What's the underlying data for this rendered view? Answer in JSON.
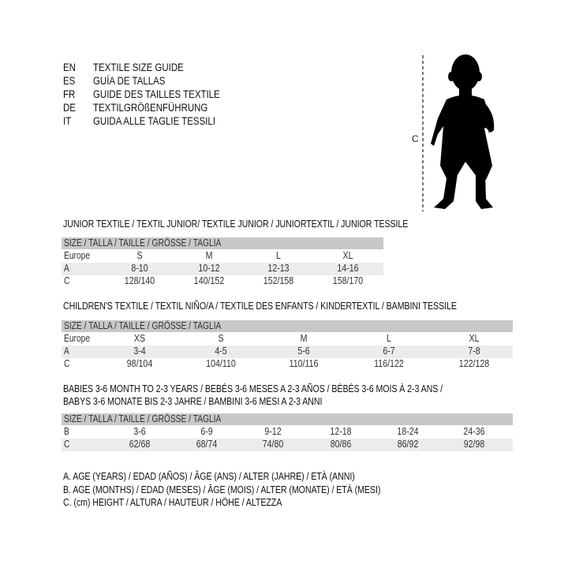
{
  "languages": [
    {
      "code": "EN",
      "text": "TEXTILE SIZE GUIDE"
    },
    {
      "code": "ES",
      "text": "GUÍA DE TALLAS"
    },
    {
      "code": "FR",
      "text": "GUIDE DES TAILLES TEXTILE"
    },
    {
      "code": "DE",
      "text": "TEXTILGRÖßENFÜHRUNG"
    },
    {
      "code": "IT",
      "text": "GUIDA ALLE TAGLIE TESSILI"
    }
  ],
  "figure": {
    "measure_label": "C",
    "icon": "child-silhouette"
  },
  "junior": {
    "title": "JUNIOR TEXTILE / TEXTIL JUNIOR/ TEXTILE JUNIOR / JUNIORTEXTIL / JUNIOR TESSILE",
    "header": "SIZE / TALLA / TAILLE / GRÖSSE / TAGLIA",
    "rows": [
      {
        "label": "Europe",
        "values": [
          "S",
          "M",
          "L",
          "XL"
        ]
      },
      {
        "label": "A",
        "values": [
          "8-10",
          "10-12",
          "12-13",
          "14-16"
        ]
      },
      {
        "label": "C",
        "values": [
          "128/140",
          "140/152",
          "152/158",
          "158/170"
        ]
      }
    ]
  },
  "children": {
    "title": "CHILDREN'S TEXTILE / TEXTIL NIÑO/A / TEXTILE DES ENFANTS / KINDERTEXTIL / BAMBINI TESSILE",
    "header": "SIZE / TALLA / TAILLE / GRÖSSE / TAGLIA",
    "rows": [
      {
        "label": "Europe",
        "values": [
          "XS",
          "S",
          "M",
          "L",
          "XL"
        ]
      },
      {
        "label": "A",
        "values": [
          "3-4",
          "4-5",
          "5-6",
          "6-7",
          "7-8"
        ]
      },
      {
        "label": "C",
        "values": [
          "98/104",
          "104/110",
          "110/116",
          "116/122",
          "122/128"
        ]
      }
    ]
  },
  "babies": {
    "title_line1": "BABIES 3-6 MONTH TO 2-3 YEARS / BEBÉS 3-6 MESES A 2-3 AÑOS / BÉBÉS 3-6 MOIS À 2-3 ANS /",
    "title_line2": "BABYS 3-6 MONATE BIS 2-3 JAHRE / BAMBINI 3-6 MESI A 2-3 ANNI",
    "header": "SIZE / TALLA / TAILLE / GRÖSSE / TAGLIA",
    "rows": [
      {
        "label": "B",
        "values": [
          "3-6",
          "6-9",
          "9-12",
          "12-18",
          "18-24",
          "24-36"
        ]
      },
      {
        "label": "C",
        "values": [
          "62/68",
          "68/74",
          "74/80",
          "80/86",
          "86/92",
          "92/98"
        ]
      }
    ]
  },
  "legend": [
    "A. AGE (YEARS) / EDAD (AÑOS) / ÂGE (ANS) / ALTER (JAHRE) / ETÀ (ANNI)",
    "B. AGE (MONTHS) / EDAD (MESES) / ÂGE (MOIS) / ALTER (MONATE) / ETÀ (MESI)",
    "C. (cm) HEIGHT / ALTURA / HAUTEUR / HÖHE / ALTEZZA"
  ]
}
